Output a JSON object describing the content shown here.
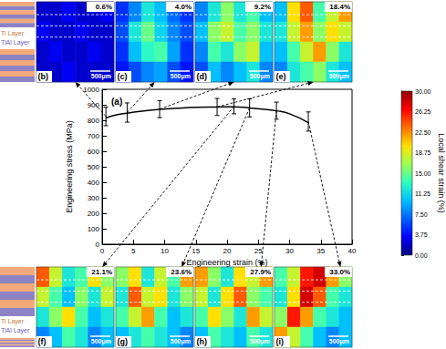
{
  "chart_data": {
    "type": "line",
    "title": "(a)",
    "x_label": "Engineering strain (%)",
    "y_label": "Engineering stress (MPa)",
    "x": [
      0.6,
      2,
      4,
      6,
      9.2,
      12,
      15,
      18.4,
      21.1,
      23.6,
      26,
      27.9,
      30,
      33.0
    ],
    "values": [
      815,
      832,
      846,
      857,
      870,
      878,
      884,
      886,
      887,
      880,
      870,
      861,
      842,
      785
    ],
    "color": "#000000",
    "error_bars": {
      "x": [
        0.6,
        4.0,
        9.2,
        18.4,
        21.1,
        23.6,
        27.9,
        33.0
      ],
      "values": [
        825,
        850,
        872,
        886,
        890,
        880,
        862,
        792
      ],
      "errors": [
        60,
        62,
        55,
        55,
        48,
        58,
        55,
        62
      ]
    },
    "xlim": [
      0,
      40
    ],
    "xticks": [
      0,
      5,
      10,
      15,
      20,
      25,
      30,
      35,
      40
    ],
    "ylim": [
      0,
      1000
    ],
    "yticks": [
      0,
      100,
      200,
      300,
      400,
      500,
      600,
      700,
      800,
      900,
      1000
    ],
    "grid": false,
    "colorbar": {
      "title": "Local shear strain (%)",
      "range": [
        0,
        30
      ],
      "ticks": [
        {
          "value": 0,
          "label": "0.00"
        },
        3.75,
        {
          "value": 7.5,
          "label": "7.50"
        },
        11.25,
        {
          "value": 15,
          "label": "15.00"
        },
        18.75,
        {
          "value": 22.5,
          "label": "22.50"
        },
        26.25,
        {
          "value": 30,
          "label": "30.00"
        }
      ]
    },
    "layer_labels": [
      "Ti Layer",
      "TiAl Layer"
    ],
    "panels": [
      {
        "label": "(b)",
        "strain": 0.6,
        "strain_label": "0.6%",
        "scale_bar": "500μm",
        "cells": [
          [
            2,
            2,
            3,
            2,
            2,
            3
          ],
          [
            3,
            2,
            2,
            3,
            2,
            2
          ],
          [
            2,
            3,
            2,
            2,
            3,
            2
          ],
          [
            2,
            2,
            3,
            2,
            2,
            2
          ]
        ]
      },
      {
        "label": "(c)",
        "strain": 4.0,
        "strain_label": "4.0%",
        "scale_bar": "500μm",
        "cells": [
          [
            5,
            8,
            12,
            10,
            7,
            5
          ],
          [
            6,
            12,
            15,
            11,
            8,
            6
          ],
          [
            5,
            10,
            13,
            14,
            9,
            5
          ],
          [
            4,
            6,
            8,
            9,
            6,
            4
          ]
        ]
      },
      {
        "label": "(d)",
        "strain": 9.2,
        "strain_label": "9.2%",
        "scale_bar": "500μm",
        "cells": [
          [
            8,
            12,
            16,
            12,
            14,
            10
          ],
          [
            10,
            16,
            18,
            14,
            16,
            12
          ],
          [
            8,
            14,
            12,
            16,
            18,
            10
          ],
          [
            6,
            10,
            8,
            10,
            12,
            8
          ]
        ]
      },
      {
        "label": "(e)",
        "strain": 18.4,
        "strain_label": "18.4%",
        "scale_bar": "500μm",
        "cells": [
          [
            10,
            20,
            24,
            14,
            18,
            22
          ],
          [
            12,
            18,
            22,
            16,
            20,
            18
          ],
          [
            10,
            14,
            18,
            22,
            16,
            12
          ],
          [
            8,
            12,
            14,
            16,
            12,
            10
          ]
        ]
      },
      {
        "label": "(f)",
        "strain": 21.1,
        "strain_label": "21.1%",
        "scale_bar": "500μm",
        "cells": [
          [
            24,
            18,
            12,
            14,
            20,
            16
          ],
          [
            18,
            14,
            10,
            16,
            12,
            18
          ],
          [
            12,
            16,
            20,
            14,
            10,
            12
          ],
          [
            8,
            10,
            14,
            12,
            8,
            10
          ]
        ]
      },
      {
        "label": "(g)",
        "strain": 23.6,
        "strain_label": "23.6%",
        "scale_bar": "500μm",
        "cells": [
          [
            16,
            20,
            12,
            18,
            14,
            22
          ],
          [
            12,
            24,
            18,
            20,
            12,
            16
          ],
          [
            14,
            18,
            22,
            14,
            10,
            12
          ],
          [
            10,
            12,
            14,
            12,
            10,
            8
          ]
        ]
      },
      {
        "label": "(h)",
        "strain": 27.9,
        "strain_label": "27.9%",
        "scale_bar": "500μm",
        "cells": [
          [
            22,
            16,
            12,
            20,
            18,
            22
          ],
          [
            18,
            12,
            20,
            24,
            16,
            14
          ],
          [
            14,
            20,
            16,
            12,
            22,
            18
          ],
          [
            10,
            14,
            12,
            10,
            14,
            12
          ]
        ]
      },
      {
        "label": "(i)",
        "strain": 33.0,
        "strain_label": "33.0%",
        "scale_bar": "500μm",
        "cells": [
          [
            14,
            18,
            26,
            28,
            22,
            16
          ],
          [
            12,
            20,
            28,
            24,
            14,
            12
          ],
          [
            16,
            26,
            22,
            14,
            12,
            10
          ],
          [
            22,
            18,
            14,
            10,
            8,
            10
          ]
        ]
      }
    ]
  }
}
